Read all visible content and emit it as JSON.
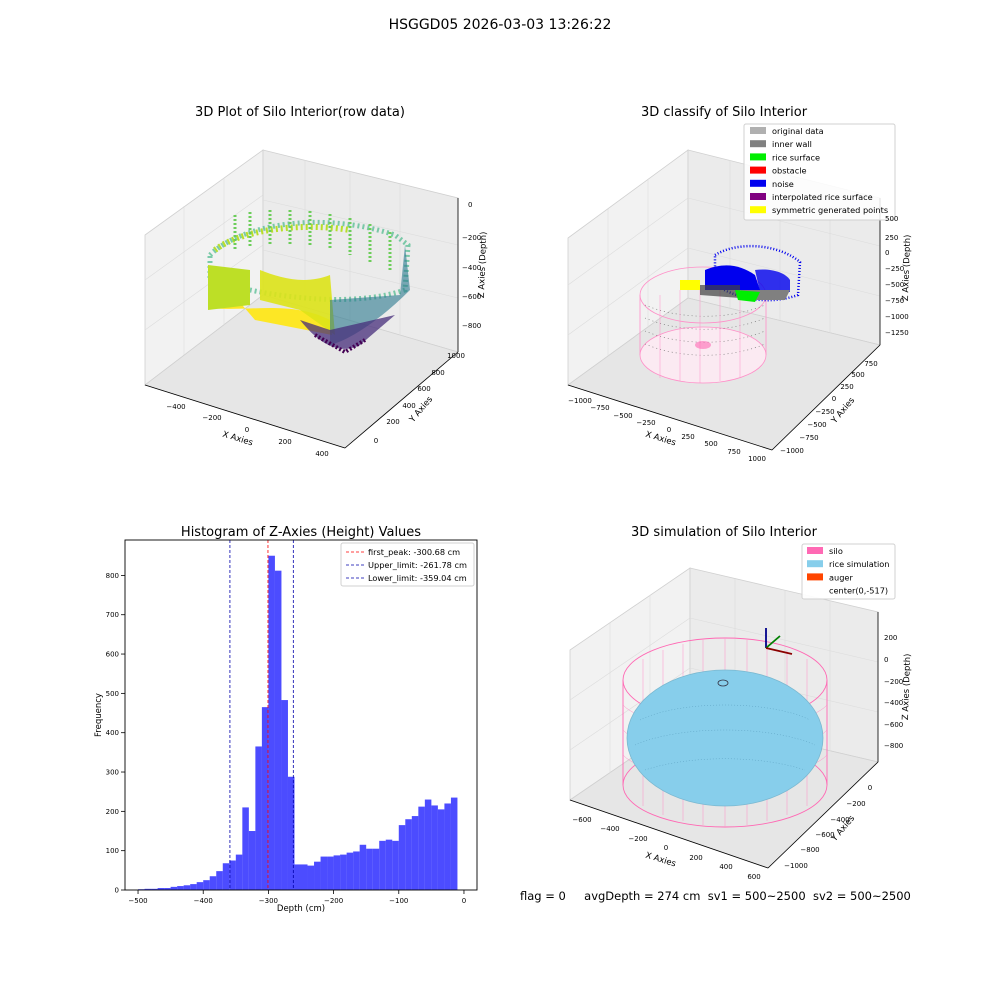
{
  "figure": {
    "suptitle": "HSGGD05 2026-03-03 13:26:22",
    "footer": {
      "flag": "flag = 0",
      "avg_depth": "avgDepth = 274 cm",
      "sv1": "sv1 = 500~2500",
      "sv2": "sv2 = 500~2500"
    }
  },
  "panels": {
    "raw": {
      "title": "3D Plot of Silo Interior(row data)",
      "xlabel": "X Axies",
      "ylabel": "Y Axies",
      "zlabel": "Z Axies (Depth)",
      "xticks": [
        "−400",
        "−200",
        "0",
        "200",
        "400"
      ],
      "yticks": [
        "0",
        "200",
        "400",
        "600",
        "800",
        "1000"
      ],
      "zticks": [
        "0",
        "−200",
        "−400",
        "−600",
        "−800"
      ]
    },
    "classify": {
      "title": "3D classify of Silo Interior",
      "xlabel": "X Axies",
      "ylabel": "Y Axies",
      "zlabel": "Z Axies (Depth)",
      "xticks": [
        "−1000",
        "−750",
        "−500",
        "−250",
        "0",
        "250",
        "500",
        "750",
        "1000"
      ],
      "yticks": [
        "−1000",
        "−750",
        "−500",
        "−250",
        "0",
        "250",
        "500",
        "750"
      ],
      "zticks": [
        "500",
        "250",
        "0",
        "−250",
        "−500",
        "−750",
        "−1000",
        "−1250"
      ],
      "legend": [
        {
          "label": "original data",
          "color": "#b0b0b0"
        },
        {
          "label": "inner wall",
          "color": "#808080"
        },
        {
          "label": "rice surface",
          "color": "#00ee00"
        },
        {
          "label": "obstacle",
          "color": "#ff0000"
        },
        {
          "label": "noise",
          "color": "#0000ee"
        },
        {
          "label": "interpolated rice surface",
          "color": "#800080"
        },
        {
          "label": "symmetric generated points",
          "color": "#ffff00"
        }
      ]
    },
    "simulation": {
      "title": "3D simulation of Silo Interior",
      "xlabel": "X Axies",
      "ylabel": "Y Axies",
      "zlabel": "Z Axies (Depth)",
      "xticks": [
        "−600",
        "−400",
        "−200",
        "0",
        "200",
        "400",
        "600"
      ],
      "yticks": [
        "0",
        "−200",
        "−400",
        "−600",
        "−800",
        "−1000"
      ],
      "zticks": [
        "200",
        "0",
        "−200",
        "−400",
        "−600",
        "−800"
      ],
      "legend": [
        {
          "label": "silo",
          "color": "#ff69b4"
        },
        {
          "label": "rice simulation",
          "color": "#87ceeb"
        },
        {
          "label": "auger",
          "color": "#ff4500"
        },
        {
          "label": "center(0,-517)",
          "color": ""
        }
      ]
    }
  },
  "chart_data": {
    "type": "bar",
    "title": "Histogram of Z-Axies (Height) Values",
    "xlabel": "Depth (cm)",
    "ylabel": "Frequency",
    "xlim": [
      -520,
      20
    ],
    "ylim": [
      0,
      890
    ],
    "bar_color": "#0000ff",
    "xticks": [
      -500,
      -400,
      -300,
      -200,
      -100,
      0
    ],
    "yticks": [
      0,
      100,
      200,
      300,
      400,
      500,
      600,
      700,
      800
    ],
    "bins": {
      "left_edges": [
        -500,
        -490,
        -480,
        -470,
        -460,
        -450,
        -440,
        -430,
        -420,
        -410,
        -400,
        -390,
        -380,
        -370,
        -360,
        -350,
        -340,
        -330,
        -320,
        -310,
        -300,
        -290,
        -280,
        -270,
        -260,
        -250,
        -240,
        -230,
        -220,
        -210,
        -200,
        -190,
        -180,
        -170,
        -160,
        -150,
        -140,
        -130,
        -120,
        -110,
        -100,
        -90,
        -80,
        -70,
        -60,
        -50,
        -40,
        -30,
        -20,
        -10
      ],
      "width": 10,
      "counts": [
        2,
        3,
        3,
        5,
        5,
        8,
        10,
        12,
        15,
        20,
        25,
        35,
        48,
        68,
        75,
        90,
        210,
        150,
        365,
        465,
        850,
        812,
        483,
        288,
        65,
        65,
        62,
        72,
        85,
        85,
        88,
        90,
        95,
        98,
        115,
        105,
        105,
        125,
        128,
        125,
        165,
        180,
        188,
        212,
        230,
        215,
        205,
        220,
        235,
        0
      ]
    },
    "vlines": [
      {
        "name": "first_peak: -300.68 cm",
        "x": -300.68,
        "color": "#ff0000"
      },
      {
        "name": "Upper_limit: -261.78 cm",
        "x": -261.78,
        "color": "#0000aa"
      },
      {
        "name": "Lower_limit: -359.04 cm",
        "x": -359.04,
        "color": "#0000aa"
      }
    ]
  }
}
